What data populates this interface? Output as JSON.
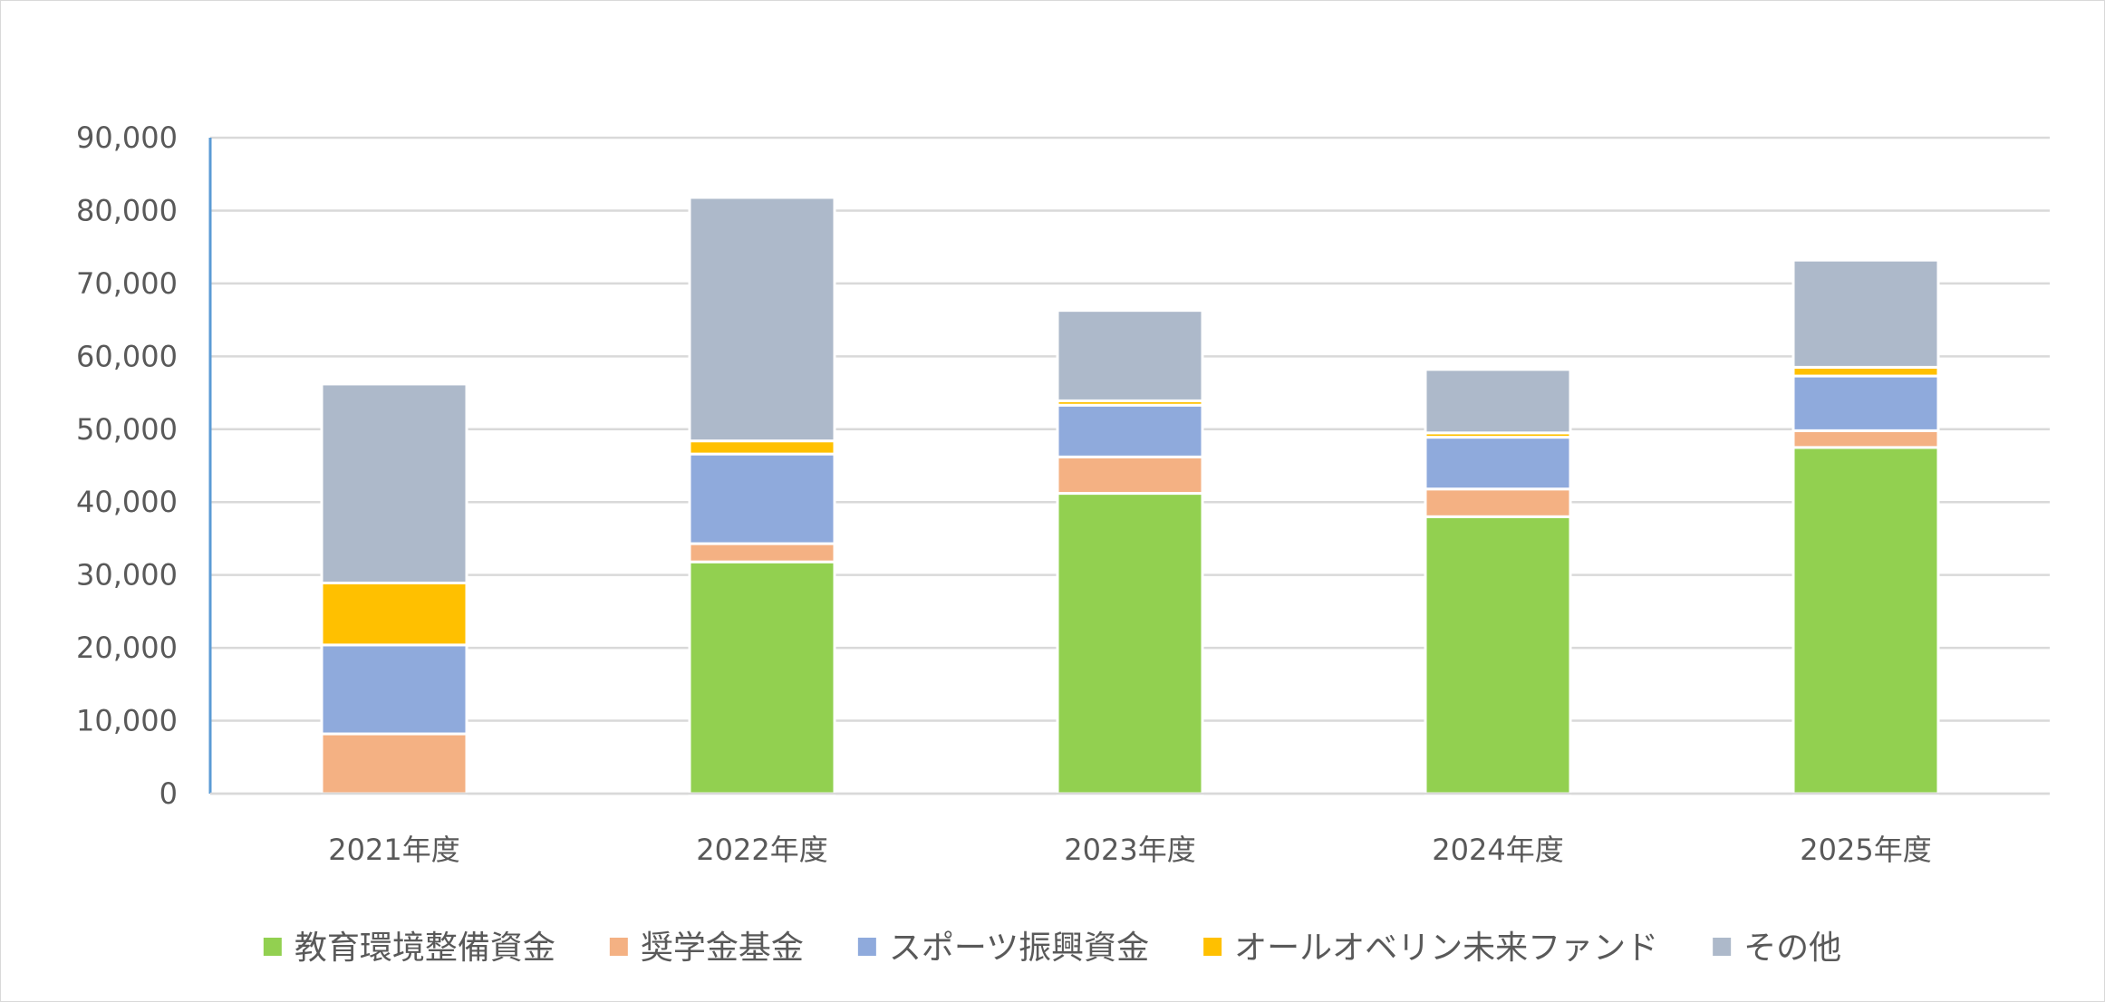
{
  "chart_data": {
    "type": "bar",
    "stacked": true,
    "title": "",
    "xlabel": "",
    "ylabel": "",
    "categories": [
      "2021年度",
      "2022年度",
      "2023年度",
      "2024年度",
      "2025年度"
    ],
    "ylim": [
      0,
      90000
    ],
    "yticks": [
      0,
      10000,
      20000,
      30000,
      40000,
      50000,
      60000,
      70000,
      80000,
      90000
    ],
    "ytick_labels": [
      "0",
      "10,000",
      "20,000",
      "30,000",
      "40,000",
      "50,000",
      "60,000",
      "70,000",
      "80,000",
      "90,000"
    ],
    "grid": true,
    "legend_position": "bottom",
    "series": [
      {
        "name": "教育環境整備資金",
        "color": "#92d050",
        "values": [
          0,
          31800,
          41200,
          38000,
          47500
        ]
      },
      {
        "name": "奨学金基金",
        "color": "#f4b183",
        "values": [
          8200,
          2500,
          5000,
          3800,
          2300
        ]
      },
      {
        "name": "スポーツ振興資金",
        "color": "#8faadc",
        "values": [
          12200,
          12300,
          7100,
          7100,
          7500
        ]
      },
      {
        "name": "オールオベリン未来ファンド",
        "color": "#ffc000",
        "values": [
          8500,
          1800,
          600,
          600,
          1200
        ]
      },
      {
        "name": "その他",
        "color": "#adb9ca",
        "values": [
          27300,
          33400,
          12400,
          8700,
          14700
        ]
      }
    ]
  }
}
